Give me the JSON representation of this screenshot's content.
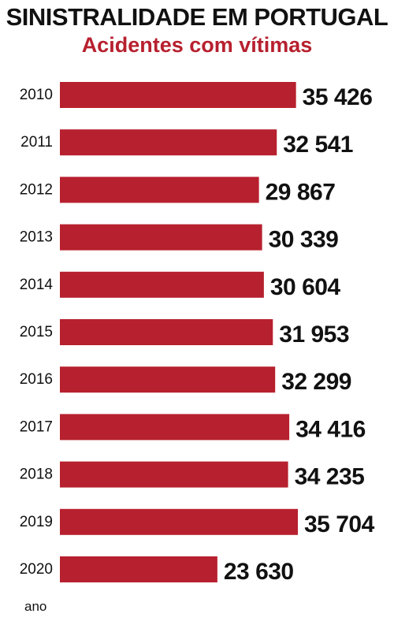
{
  "chart_data": {
    "type": "bar",
    "orientation": "horizontal",
    "title": "SINISTRALIDADE EM PORTUGAL",
    "subtitle": "Acidentes com vítimas",
    "xlabel": "ano",
    "categories": [
      "2010",
      "2011",
      "2012",
      "2013",
      "2014",
      "2015",
      "2016",
      "2017",
      "2018",
      "2019",
      "2020"
    ],
    "values": [
      35426,
      32541,
      29867,
      30339,
      30604,
      31953,
      32299,
      34416,
      34235,
      35704,
      23630
    ],
    "value_labels": [
      "35 426",
      "32 541",
      "29 867",
      "30 339",
      "30 604",
      "31 953",
      "32 299",
      "34 416",
      "34 235",
      "35 704",
      "23 630"
    ],
    "bar_color": "#b7202e",
    "subtitle_color": "#b7202e",
    "text_color": "#111111",
    "grid": false
  }
}
